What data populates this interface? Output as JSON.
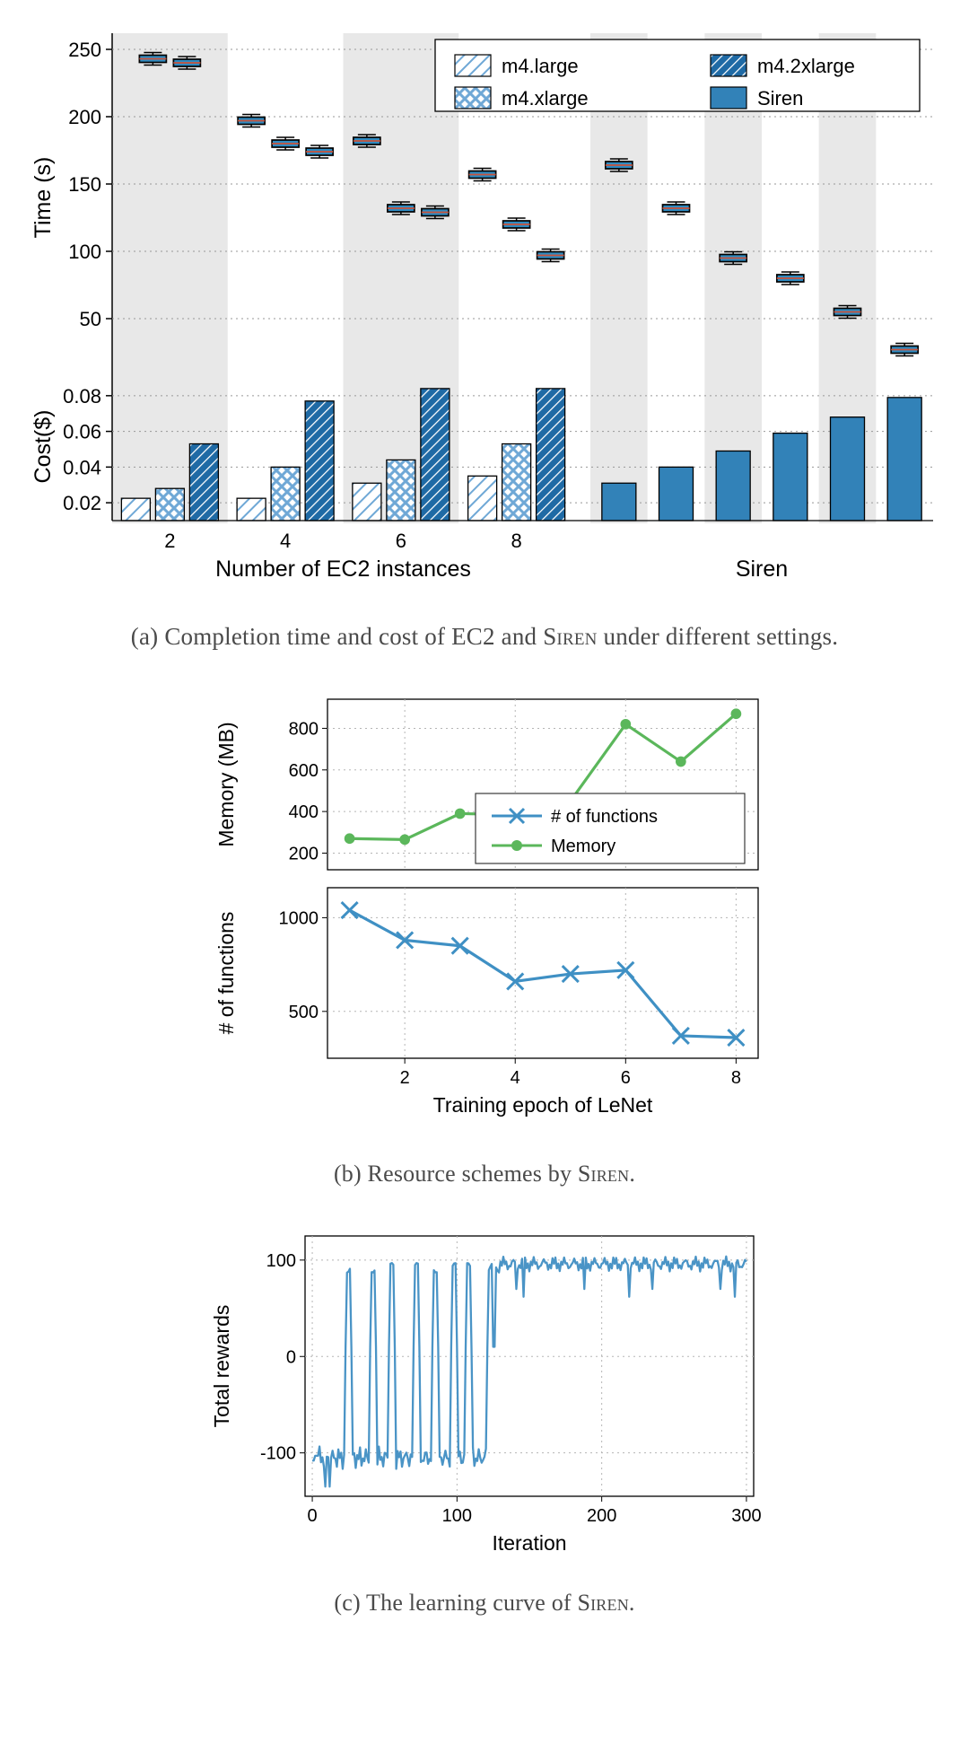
{
  "chartA": {
    "type": "bar+boxplot-dual-panel",
    "colors": {
      "light_hatch": "#6fa8d6",
      "dark_hatch": "#8cb6da",
      "solid": "#3282b8",
      "siren": "#3282b8",
      "bar_edge": "#000000",
      "grid": "#979797",
      "shade": "#e8e8e8",
      "box_edge": "#000000",
      "box_fill": "#2f8ac0",
      "median": "#c9533c"
    },
    "legend": {
      "items": [
        "m4.large",
        "m4.xlarge",
        "m4.2xlarge",
        "Siren"
      ],
      "fontsize": 22
    },
    "top": {
      "ylabel": "Time (s)",
      "ylim": [
        20,
        260
      ],
      "yticks": [
        50,
        100,
        150,
        200,
        250
      ],
      "groups": {
        "ec2": {
          "xticks": [
            2,
            4,
            6,
            8
          ],
          "series": {
            "m4.large": [
              243,
              197,
              182,
              157
            ],
            "m4.xlarge": [
              240,
              180,
              132,
              120
            ],
            "m4.2xlarge": [
              null,
              174,
              129,
              97
            ]
          }
        },
        "siren": {
          "values": [
            164,
            132,
            95,
            80,
            55,
            27
          ]
        }
      }
    },
    "bottom": {
      "ylabel": "Cost($)",
      "ylim": [
        0.01,
        0.093
      ],
      "yticks": [
        0.02,
        0.04,
        0.06,
        0.08
      ],
      "groups": {
        "ec2": {
          "xticks": [
            2,
            4,
            6,
            8
          ],
          "xlabel": "Number of EC2 instances",
          "series": {
            "m4.large": [
              0.0225,
              0.0225,
              0.031,
              0.035
            ],
            "m4.xlarge": [
              0.028,
              0.04,
              0.044,
              0.053
            ],
            "m4.2xlarge": [
              0.053,
              0.077,
              0.084,
              0.084
            ]
          }
        },
        "siren": {
          "values": [
            0.031,
            0.04,
            0.049,
            0.059,
            0.068,
            0.079
          ],
          "xlabel": "Siren"
        }
      }
    },
    "axis_fontsize": 25,
    "tick_fontsize": 22
  },
  "captionA": "(a) Completion time and cost of EC2 and SIREN under different settings.",
  "chartB": {
    "type": "stacked-line",
    "colors": {
      "mem": "#5bb75b",
      "func": "#3f90c4",
      "grid": "#b5b5b5",
      "text": "#333"
    },
    "x": {
      "label": "Training epoch of LeNet",
      "ticks": [
        2,
        4,
        6,
        8
      ],
      "lim": [
        0.6,
        8.4
      ]
    },
    "top": {
      "ylabel": "Memory (MB)",
      "yticks": [
        200,
        400,
        600,
        800
      ],
      "ylim": [
        120,
        940
      ],
      "data": {
        "x": [
          1,
          2,
          3,
          4,
          5,
          6,
          7,
          8
        ],
        "y": [
          270,
          265,
          390,
          385,
          450,
          820,
          640,
          870
        ]
      }
    },
    "bottom": {
      "ylabel": "# of functions",
      "yticks": [
        500,
        1000
      ],
      "ylim": [
        250,
        1160
      ],
      "data": {
        "x": [
          1,
          2,
          3,
          4,
          5,
          6,
          7,
          8
        ],
        "y": [
          1040,
          880,
          850,
          660,
          700,
          720,
          370,
          360
        ]
      }
    },
    "legend": {
      "items": [
        "# of functions",
        "Memory"
      ],
      "fontsize": 20
    },
    "axis_fontsize": 23,
    "tick_fontsize": 20,
    "marker_size": 9,
    "line_width": 3.2
  },
  "captionB": "(b) Resource schemes by SIREN.",
  "chartC": {
    "type": "line",
    "colors": {
      "line": "#4a94c6",
      "grid": "#b5b5b5"
    },
    "x": {
      "label": "Iteration",
      "ticks": [
        0,
        100,
        200,
        300
      ],
      "lim": [
        -5,
        305
      ]
    },
    "y": {
      "label": "Total rewards",
      "ticks": [
        -100,
        0,
        100
      ],
      "lim": [
        -145,
        125
      ]
    },
    "axis_fontsize": 23,
    "tick_fontsize": 20,
    "line_width": 2.3,
    "data_desc": "highly noisy reward curve: ≈-105 baseline with ~8 narrow positive spikes to ~90–100 in iters 25–120, then stable ≈95–100 for iters>130 with small dips"
  },
  "captionC": "(c) The learning curve of SIREN."
}
